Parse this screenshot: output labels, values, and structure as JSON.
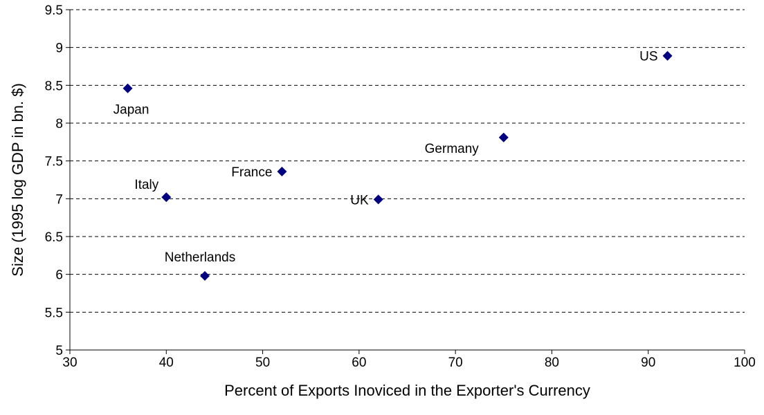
{
  "chart_data": {
    "type": "scatter",
    "title": "",
    "xlabel": "Percent of Exports Inoviced in the Exporter's Currency",
    "ylabel": "Size (1995 log GDP in bn. $)",
    "xlim": [
      30,
      100
    ],
    "ylim": [
      5,
      9.5
    ],
    "x_ticks": [
      "30",
      "40",
      "50",
      "60",
      "70",
      "80",
      "90",
      "100"
    ],
    "y_ticks": [
      "5",
      "5.5",
      "6",
      "6.5",
      "7",
      "7.5",
      "8",
      "8.5",
      "9",
      "9.5"
    ],
    "grid": "horizontal-dashed",
    "marker": "diamond",
    "marker_color": "#000080",
    "points": [
      {
        "label": "Japan",
        "x": 36,
        "y": 8.46,
        "label_pos": "below"
      },
      {
        "label": "Italy",
        "x": 40,
        "y": 7.02,
        "label_pos": "above-left"
      },
      {
        "label": "Netherlands",
        "x": 44,
        "y": 5.98,
        "label_pos": "above"
      },
      {
        "label": "France",
        "x": 52,
        "y": 7.36,
        "label_pos": "left"
      },
      {
        "label": "UK",
        "x": 62,
        "y": 6.99,
        "label_pos": "left"
      },
      {
        "label": "Germany",
        "x": 75,
        "y": 7.81,
        "label_pos": "below-left"
      },
      {
        "label": "US",
        "x": 92,
        "y": 8.89,
        "label_pos": "left"
      }
    ]
  }
}
